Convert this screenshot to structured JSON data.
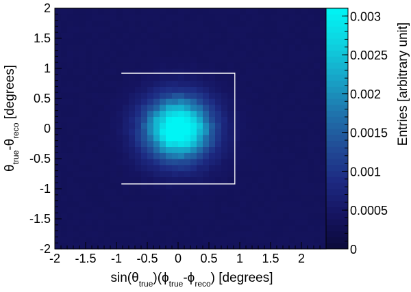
{
  "chart_data": {
    "type": "heatmap",
    "title": "",
    "xlabel": {
      "parts": [
        {
          "t": "sin(θ",
          "sub": false
        },
        {
          "t": "true",
          "sub": true
        },
        {
          "t": ")(ϕ",
          "sub": false
        },
        {
          "t": "true",
          "sub": true
        },
        {
          "t": "-ϕ",
          "sub": false
        },
        {
          "t": "reco",
          "sub": true
        },
        {
          "t": ") [degrees]",
          "sub": false
        }
      ]
    },
    "ylabel": {
      "parts": [
        {
          "t": "θ",
          "sub": false
        },
        {
          "t": "true",
          "sub": true
        },
        {
          "t": "-θ",
          "sub": false
        },
        {
          "t": "reco",
          "sub": true
        },
        {
          "t": " [degrees]",
          "sub": false
        }
      ]
    },
    "zlabel": "Entries [arbitrary unit]",
    "xlim": [
      -2,
      2.4
    ],
    "ylim": [
      -2,
      2
    ],
    "zlim": [
      0,
      0.0031
    ],
    "x_ticks": [
      -2,
      -1.5,
      -1,
      -0.5,
      0,
      0.5,
      1,
      1.5,
      2
    ],
    "x_tick_labels": [
      "-2",
      "-1.5",
      "-1",
      "-0.5",
      "0",
      "0.5",
      "1",
      "1.5",
      "2"
    ],
    "y_ticks": [
      -2,
      -1.5,
      -1,
      -0.5,
      0,
      0.5,
      1,
      1.5,
      2
    ],
    "y_tick_labels": [
      "-2",
      "-1.5",
      "-1",
      "-0.5",
      "0",
      "0.5",
      "1",
      "1.5",
      "2"
    ],
    "z_ticks": [
      0,
      0.0005,
      0.001,
      0.0015,
      0.002,
      0.0025,
      0.003
    ],
    "z_tick_labels": [
      "0",
      "0.0005",
      "0.001",
      "0.0015",
      "0.002",
      "0.0025",
      "0.003"
    ],
    "distribution": {
      "shape": "gaussian-2d",
      "center": [
        0,
        0
      ],
      "sigma_x": 0.38,
      "sigma_y": 0.36,
      "peak": 0.0035,
      "background": 0.00038,
      "bins_x": 44,
      "bins_y": 40
    },
    "selection_box": {
      "x": [
        -0.92,
        0.92
      ],
      "y": [
        -0.92,
        0.92
      ],
      "color": "#ffffff"
    },
    "colormap": [
      "#0b0a3a",
      "#151460",
      "#1d2a82",
      "#214d97",
      "#1f76ad",
      "#17a6c8",
      "#0ed3e0",
      "#00f5f5"
    ]
  }
}
